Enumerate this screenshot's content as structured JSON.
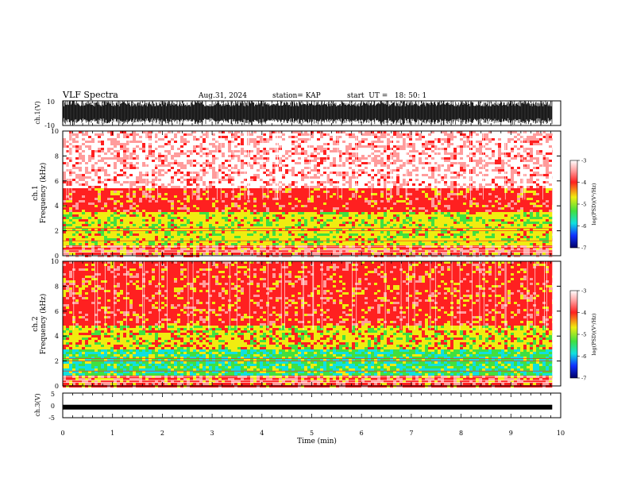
{
  "header": {
    "title": "VLF Spectra",
    "date": "Aug.31, 2024",
    "station": "station= KAP",
    "start": "start  UT =   18: 50: 1"
  },
  "chart_data": [
    {
      "type": "line",
      "ylabel": "ch.1(V)",
      "ylim": [
        -10,
        10
      ],
      "yticks": [
        "10",
        "-10"
      ],
      "xlim": [
        0,
        10
      ],
      "description_series": "broadband waveform, amplitude roughly ±10 V"
    },
    {
      "type": "heatmap",
      "ylabel_line1": "ch.1",
      "ylabel_line2": "Frequency (kHz)",
      "ylim": [
        0,
        10
      ],
      "yticks": [
        "0",
        "2",
        "4",
        "6",
        "8",
        "10"
      ],
      "xlim": [
        0,
        10
      ],
      "data_xmax": 9.83,
      "bands": [
        {
          "f0": 0,
          "f1": 0.8,
          "level": "mixed"
        },
        {
          "f0": 0.8,
          "f1": 3.5,
          "level": "yellow-green"
        },
        {
          "f0": 3.5,
          "f1": 5.5,
          "level": "red"
        },
        {
          "f0": 5.5,
          "f1": 10,
          "level": "light-red"
        }
      ],
      "colorbar": {
        "label": "log(PSD)(V²/Hz)",
        "range": [
          -7,
          -3
        ],
        "ticks": [
          "-3",
          "-4",
          "-5",
          "-6",
          "-7"
        ]
      }
    },
    {
      "type": "heatmap",
      "ylabel_line1": "ch.2",
      "ylabel_line2": "Frequency (kHz)",
      "ylim": [
        0,
        10
      ],
      "yticks": [
        "0",
        "2",
        "4",
        "6",
        "8",
        "10"
      ],
      "xlim": [
        0,
        10
      ],
      "data_xmax": 9.83,
      "bands": [
        {
          "f0": 0,
          "f1": 0.8,
          "level": "mixed"
        },
        {
          "f0": 0.8,
          "f1": 3.0,
          "level": "green-cyan"
        },
        {
          "f0": 3.0,
          "f1": 4.8,
          "level": "yellow-red"
        },
        {
          "f0": 4.8,
          "f1": 10,
          "level": "red"
        }
      ],
      "colorbar": {
        "label": "log(PSD)(V²/Hz)",
        "range": [
          -7,
          -3
        ],
        "ticks": [
          "-3",
          "-4",
          "-5",
          "-6",
          "-7"
        ]
      }
    },
    {
      "type": "line",
      "ylabel": "ch.3(V)",
      "ylim": [
        -5,
        5
      ],
      "yticks": [
        "5",
        "0",
        "-5"
      ],
      "xlim": [
        0,
        10
      ],
      "xlabel": "Time (min)",
      "xticks": [
        "0",
        "1",
        "2",
        "3",
        "4",
        "5",
        "6",
        "7",
        "8",
        "9",
        "10"
      ],
      "level": -0.7
    }
  ],
  "colors": {
    "white": "#ffffff",
    "red": "#ff2020",
    "light_red": "#ff9c9c",
    "yellow": "#f0ec10",
    "green": "#40e040",
    "cyan": "#10e0e0",
    "blue": "#1030ff",
    "navy": "#000066"
  }
}
